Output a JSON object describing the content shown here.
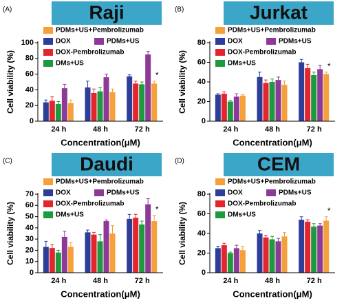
{
  "chart_data": [
    {
      "type": "bar",
      "panel": "(A)",
      "title": "Raji",
      "y_label": "Cell viability (%)",
      "x_label": "Concentration(μM)",
      "categories": [
        "24 h",
        "48 h",
        "72 h"
      ],
      "ylim": [
        0,
        100
      ],
      "yticks": [
        0,
        20,
        40,
        60,
        80,
        100
      ],
      "annotation": "*",
      "series": [
        {
          "name": "DOX",
          "color": "#2c3e9a",
          "values": [
            24,
            43,
            57
          ],
          "errors": [
            3,
            8,
            2
          ]
        },
        {
          "name": "DOX-Pembrolizumab",
          "color": "#e5252e",
          "values": [
            26,
            36,
            48
          ],
          "errors": [
            5,
            5,
            3
          ]
        },
        {
          "name": "DMs+US",
          "color": "#1e9a3e",
          "values": [
            22,
            38,
            47
          ],
          "errors": [
            3,
            5,
            3
          ]
        },
        {
          "name": "PDMs+US",
          "color": "#8d3a96",
          "values": [
            42,
            56,
            85
          ],
          "errors": [
            5,
            4,
            4
          ]
        },
        {
          "name": "PDMs+US+Pembrolizumab",
          "color": "#f6a03c",
          "values": [
            23,
            37,
            48
          ],
          "errors": [
            4,
            4,
            3
          ]
        }
      ]
    },
    {
      "type": "bar",
      "panel": "(B)",
      "title": "Jurkat",
      "y_label": "Cell viability (%)",
      "x_label": "Concentration(μM)",
      "categories": [
        "24 h",
        "48 h",
        "72 h"
      ],
      "ylim": [
        0,
        80
      ],
      "yticks": [
        0,
        20,
        40,
        60,
        80
      ],
      "annotation": "*",
      "series": [
        {
          "name": "DOX",
          "color": "#2c3e9a",
          "values": [
            27,
            45,
            60
          ],
          "errors": [
            1,
            5,
            3
          ]
        },
        {
          "name": "DOX-Pembrolizumab",
          "color": "#e5252e",
          "values": [
            28,
            39,
            54
          ],
          "errors": [
            2,
            3,
            4
          ]
        },
        {
          "name": "DMs+US",
          "color": "#1e9a3e",
          "values": [
            20,
            40,
            47
          ],
          "errors": [
            1,
            3,
            3
          ]
        },
        {
          "name": "PDMs+US",
          "color": "#8d3a96",
          "values": [
            25,
            42,
            53
          ],
          "errors": [
            3,
            3,
            4
          ]
        },
        {
          "name": "PDMs+US+Pembrolizumab",
          "color": "#f6a03c",
          "values": [
            26,
            37,
            48
          ],
          "errors": [
            1,
            4,
            2
          ]
        }
      ]
    },
    {
      "type": "bar",
      "panel": "(C)",
      "title": "Daudi",
      "y_label": "Cell viability (%)",
      "x_label": "Concentration(μM)",
      "categories": [
        "24 h",
        "48 h",
        "72 h"
      ],
      "ylim": [
        0,
        70
      ],
      "yticks": [
        0,
        10,
        20,
        30,
        40,
        50,
        60,
        70
      ],
      "annotation": "*",
      "series": [
        {
          "name": "DOX",
          "color": "#2c3e9a",
          "values": [
            23,
            36,
            48
          ],
          "errors": [
            5,
            2,
            4
          ]
        },
        {
          "name": "DOX-Pembrolizumab",
          "color": "#e5252e",
          "values": [
            22,
            34,
            49
          ],
          "errors": [
            3,
            2,
            3
          ]
        },
        {
          "name": "DMs+US",
          "color": "#1e9a3e",
          "values": [
            18,
            28,
            43
          ],
          "errors": [
            2,
            6,
            3
          ]
        },
        {
          "name": "PDMs+US",
          "color": "#8d3a96",
          "values": [
            32,
            46,
            61
          ],
          "errors": [
            5,
            1,
            5
          ]
        },
        {
          "name": "PDMs+US+Pembrolizumab",
          "color": "#f6a03c",
          "values": [
            23,
            35,
            46
          ],
          "errors": [
            4,
            7,
            5
          ]
        }
      ]
    },
    {
      "type": "bar",
      "panel": "(D)",
      "title": "CEM",
      "y_label": "Cell viability (%)",
      "x_label": "Concentration(μM)",
      "categories": [
        "24 h",
        "48 h",
        "72 h"
      ],
      "ylim": [
        0,
        80
      ],
      "yticks": [
        0,
        20,
        40,
        60,
        80
      ],
      "annotation": "*",
      "series": [
        {
          "name": "DOX",
          "color": "#2c3e9a",
          "values": [
            25,
            40,
            54
          ],
          "errors": [
            2,
            3,
            3
          ]
        },
        {
          "name": "DOX-Pembrolizumab",
          "color": "#e5252e",
          "values": [
            28,
            36,
            52
          ],
          "errors": [
            2,
            2,
            2
          ]
        },
        {
          "name": "DMs+US",
          "color": "#1e9a3e",
          "values": [
            20,
            34,
            47
          ],
          "errors": [
            1,
            3,
            3
          ]
        },
        {
          "name": "PDMs+US",
          "color": "#8d3a96",
          "values": [
            25,
            32,
            48
          ],
          "errors": [
            3,
            3,
            2
          ]
        },
        {
          "name": "PDMs+US+Pembrolizumab",
          "color": "#f6a03c",
          "values": [
            23,
            37,
            53
          ],
          "errors": [
            4,
            4,
            4
          ]
        }
      ]
    }
  ]
}
